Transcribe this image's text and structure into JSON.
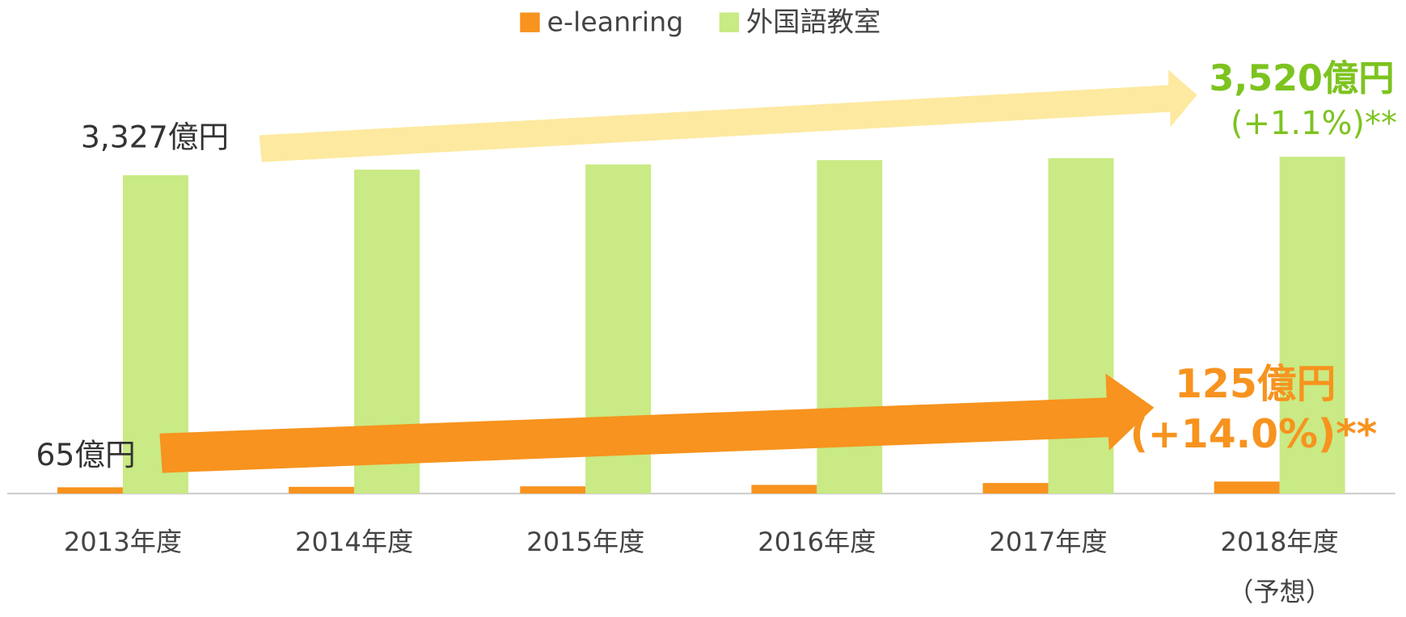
{
  "chart_data": {
    "type": "bar",
    "categories": [
      "2013年度",
      "2014年度",
      "2015年度",
      "2016年度",
      "2017年度",
      "2018年度\n（予想）"
    ],
    "series": [
      {
        "name": "e-leanring",
        "color": "#f7931e",
        "values": [
          65,
          70,
          75,
          90,
          110,
          125
        ]
      },
      {
        "name": "外国語教室",
        "color": "#c9ea84",
        "values": [
          3327,
          3385,
          3440,
          3485,
          3505,
          3520
        ]
      }
    ],
    "annotations": {
      "green_start": "3,327億円",
      "green_end": "3,520億円",
      "green_growth": "(+1.1%)**",
      "orange_start": "65億円",
      "orange_end": "125億円",
      "orange_growth": "(+14.0%)**"
    },
    "legend": "top"
  }
}
